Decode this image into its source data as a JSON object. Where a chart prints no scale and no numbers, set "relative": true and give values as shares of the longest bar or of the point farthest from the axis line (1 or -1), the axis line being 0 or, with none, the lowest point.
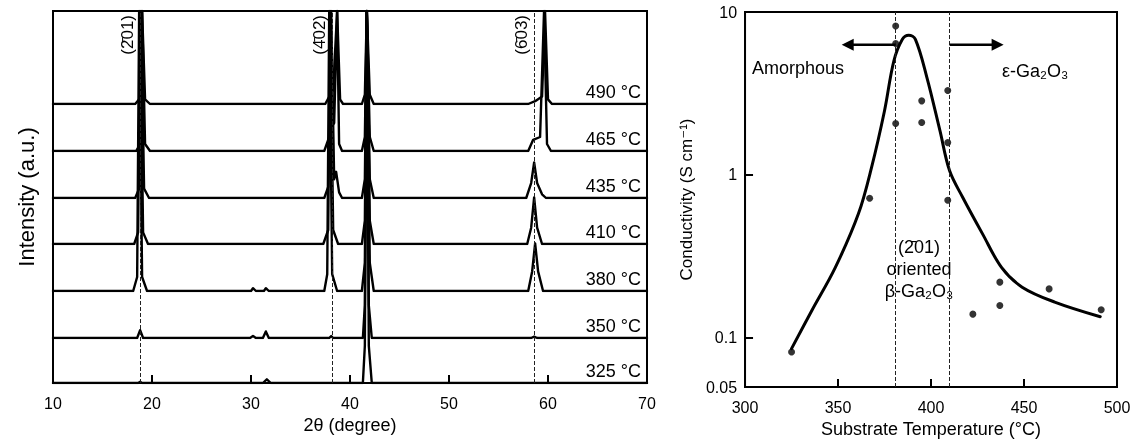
{
  "chart_data": [
    {
      "type": "line",
      "relative": true,
      "xlim": [
        10,
        70
      ],
      "xticks": [
        10,
        20,
        30,
        40,
        50,
        60,
        70
      ],
      "tick_labels": false,
      "series": [
        {
          "name": "490 °C",
          "color": "#000000",
          "x": [
            10,
            18.3,
            18.7,
            19.0,
            19.3,
            19.8,
            37.5,
            38.0,
            38.3,
            38.7,
            39.0,
            39.3,
            41.2,
            41.5,
            41.7,
            42.0,
            42.4,
            58.0,
            58.7,
            59.4,
            59.7,
            60.0,
            60.4,
            70
          ],
          "values": [
            0,
            0,
            0.05,
            1,
            0.05,
            0,
            0,
            0.1,
            0.15,
            1,
            0.05,
            0,
            0,
            0.1,
            1,
            0.1,
            0,
            0,
            0.03,
            0.08,
            1,
            0.05,
            0,
            0
          ]
        }
      ]
    },
    {
      "type": "line",
      "relative": true,
      "xlim": [
        10,
        70
      ],
      "xticks": [
        10,
        20,
        30,
        40,
        50,
        60,
        70
      ],
      "tick_labels": false,
      "series": [
        {
          "name": "465 °C",
          "color": "#000000",
          "x": [
            10,
            18.4,
            18.8,
            19.0,
            19.3,
            19.8,
            37.4,
            37.9,
            38.1,
            38.4,
            38.7,
            38.9,
            39.2,
            41.2,
            41.5,
            41.7,
            42.0,
            42.4,
            58.0,
            58.5,
            59.2,
            59.6,
            59.9,
            60.3,
            70
          ],
          "values": [
            0,
            0,
            0.05,
            1,
            0.05,
            0,
            0,
            0.1,
            0.17,
            0.2,
            1,
            0.05,
            0,
            0,
            0.1,
            1,
            0.1,
            0,
            0,
            0.08,
            0.1,
            1,
            0.05,
            0,
            0
          ]
        }
      ]
    },
    {
      "type": "line",
      "relative": true,
      "xlim": [
        10,
        70
      ],
      "xticks": [
        10,
        20,
        30,
        40,
        50,
        60,
        70
      ],
      "tick_labels": false,
      "series": [
        {
          "name": "435 °C",
          "color": "#000000",
          "x": [
            10,
            18.3,
            18.7,
            18.9,
            19.2,
            19.7,
            37.4,
            37.8,
            38.1,
            38.4,
            38.6,
            38.9,
            39.2,
            41.2,
            41.5,
            41.7,
            42.0,
            42.4,
            57.8,
            58.3,
            58.6,
            58.9,
            59.4,
            59.8,
            70
          ],
          "values": [
            0,
            0,
            0.05,
            1,
            0.05,
            0,
            0,
            0.06,
            1,
            0.1,
            0.14,
            0.03,
            0,
            0,
            0.1,
            1,
            0.1,
            0,
            0,
            0.08,
            0.19,
            0.08,
            0.02,
            0,
            0
          ]
        }
      ]
    },
    {
      "type": "line",
      "relative": true,
      "xlim": [
        10,
        70
      ],
      "xticks": [
        10,
        20,
        30,
        40,
        50,
        60,
        70
      ],
      "tick_labels": false,
      "series": [
        {
          "name": "410 °C",
          "color": "#000000",
          "x": [
            10,
            18.2,
            18.6,
            18.8,
            19.1,
            19.6,
            37.3,
            37.8,
            38.0,
            38.3,
            38.8,
            41.2,
            41.5,
            41.7,
            42.0,
            42.4,
            57.9,
            58.3,
            58.6,
            58.9,
            59.4,
            70
          ],
          "values": [
            0,
            0,
            0.05,
            1,
            0.05,
            0,
            0,
            0.06,
            1,
            0.06,
            0,
            0,
            0.1,
            1,
            0.1,
            0,
            0,
            0.07,
            0.2,
            0.07,
            0,
            0
          ]
        }
      ]
    },
    {
      "type": "line",
      "relative": true,
      "xlim": [
        10,
        70
      ],
      "xticks": [
        10,
        20,
        30,
        40,
        50,
        60,
        70
      ],
      "tick_labels": false,
      "series": [
        {
          "name": "380 °C",
          "color": "#000000",
          "x": [
            10,
            18.1,
            18.5,
            18.7,
            19.0,
            19.5,
            30.0,
            30.2,
            30.5,
            31.3,
            31.5,
            31.8,
            37.4,
            37.7,
            37.9,
            38.2,
            38.7,
            41.2,
            41.5,
            41.7,
            42.0,
            42.4,
            58.0,
            58.4,
            58.7,
            59.0,
            59.5,
            70
          ],
          "values": [
            0,
            0,
            0.05,
            1,
            0.05,
            0,
            0,
            0.01,
            0,
            0,
            0.01,
            0,
            0,
            0.06,
            1,
            0.06,
            0,
            0,
            0.1,
            1,
            0.1,
            0,
            0,
            0.07,
            0.17,
            0.07,
            0,
            0
          ]
        }
      ]
    },
    {
      "type": "line",
      "relative": true,
      "xlim": [
        10,
        70
      ],
      "xticks": [
        10,
        20,
        30,
        40,
        50,
        60,
        70
      ],
      "tick_labels": false,
      "series": [
        {
          "name": "350 °C",
          "color": "#000000",
          "x": [
            10,
            18.5,
            18.8,
            19.1,
            29.9,
            30.2,
            30.5,
            31.2,
            31.5,
            31.8,
            37.9,
            38.1,
            38.3,
            41.3,
            41.5,
            41.7,
            41.9,
            42.2,
            58.3,
            58.6,
            58.9,
            70
          ],
          "values": [
            0,
            0,
            0.024,
            0,
            0,
            0.006,
            0,
            0,
            0.02,
            0,
            0,
            0.006,
            0,
            0,
            0.1,
            1,
            0.1,
            0,
            0,
            0.004,
            0,
            0
          ]
        }
      ]
    },
    {
      "type": "line",
      "relative": true,
      "xlim": [
        10,
        70
      ],
      "xticks": [
        10,
        20,
        30,
        40,
        50,
        60,
        70
      ],
      "tick_labels": "x",
      "xlabel": "2θ (degree)",
      "ylabel": "Intensity (a.u.)",
      "series": [
        {
          "name": "325 °C",
          "color": "#000000",
          "x": [
            10,
            18.6,
            18.8,
            19.0,
            31.2,
            31.6,
            32.0,
            41.3,
            41.5,
            41.7,
            41.9,
            42.2,
            70
          ],
          "values": [
            0,
            0,
            0.003,
            0,
            0,
            0.01,
            0,
            0,
            0.1,
            1,
            0.1,
            0,
            0
          ]
        }
      ],
      "ref_lines": [
        {
          "axis": "x",
          "value": 18.8,
          "label": "(2̄01)",
          "line_style": "dashed"
        },
        {
          "axis": "x",
          "value": 38.2,
          "label": "(4̄02)",
          "line_style": "dashed"
        },
        {
          "axis": "x",
          "value": 58.6,
          "label": "(6̄03)",
          "line_style": "dashed"
        }
      ]
    },
    {
      "type": "scatter",
      "log": "y",
      "xlabel": "Substrate Temperature (°C)",
      "ylabel": "Conductivity (S cm⁻¹)",
      "xlim": [
        300,
        500
      ],
      "xticks": [
        300,
        350,
        400,
        450,
        500
      ],
      "ylim": [
        0.05,
        10
      ],
      "yticks": [
        0.05,
        0.1,
        1,
        10
      ],
      "series": [
        {
          "type": "line",
          "marker": "none",
          "color": "#000000",
          "x": [
            325,
            336,
            348.5,
            361,
            368,
            375,
            380,
            384.6,
            388,
            391.6,
            397.8,
            404.8,
            410,
            417,
            427.7,
            438,
            449,
            466.5,
            491
          ],
          "values": [
            0.086,
            0.148,
            0.27,
            0.58,
            1.11,
            2.48,
            5.0,
            6.8,
            7.2,
            6.8,
            3.96,
            1.87,
            1.06,
            0.73,
            0.435,
            0.27,
            0.205,
            0.166,
            0.135
          ]
        },
        {
          "marker": "circle",
          "color": "#000000",
          "x": [
            325,
            367,
            381,
            381,
            381,
            395,
            395,
            409,
            409,
            409,
            422.5,
            437,
            437,
            463.5,
            491.5
          ],
          "values": [
            0.082,
            0.72,
            8.2,
            6.4,
            2.07,
            2.85,
            2.1,
            3.3,
            1.58,
            0.7,
            0.14,
            0.22,
            0.158,
            0.2,
            0.149
          ]
        }
      ],
      "ref_lines": [
        {
          "axis": "x",
          "value": 381,
          "line_style": "dashed"
        },
        {
          "axis": "x",
          "value": 410,
          "line_style": "dashed"
        }
      ],
      "annotations": [
        {
          "text": "Amorphous",
          "x": 381,
          "y": 6.3
        },
        {
          "text": "ε-Ga₂O₃",
          "x": 410,
          "y": 6.3
        },
        "(2̄01)\noriented\nβ-Ga₂O₃"
      ]
    }
  ]
}
